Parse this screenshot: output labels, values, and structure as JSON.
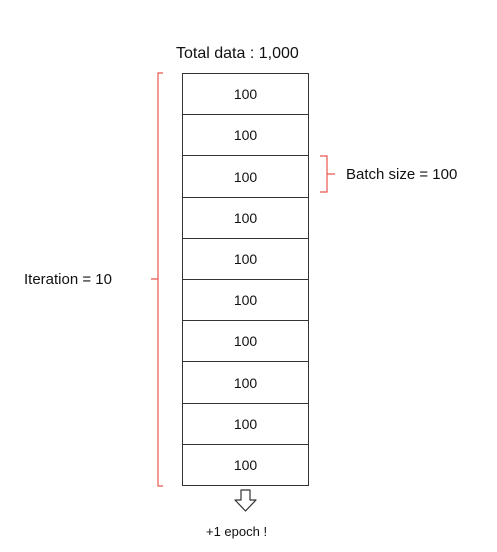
{
  "title": "Total data : 1,000",
  "batches": [
    "100",
    "100",
    "100",
    "100",
    "100",
    "100",
    "100",
    "100",
    "100",
    "100"
  ],
  "iteration_label": "Iteration = 10",
  "batch_size_label": "Batch size = 100",
  "epoch_label": "+1 epoch !",
  "colors": {
    "brace": "#e8574f",
    "border": "#333333"
  },
  "icons": {
    "arrow": "down-arrow-icon"
  }
}
